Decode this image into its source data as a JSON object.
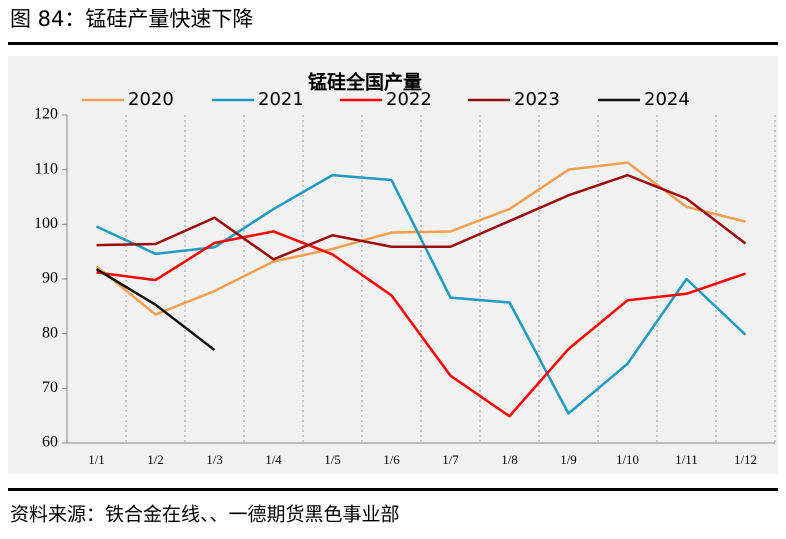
{
  "header": {
    "title": "图 84：锰硅产量快速下降"
  },
  "chart_data": {
    "type": "line",
    "title": "锰硅全国产量",
    "categories": [
      "1/1",
      "1/2",
      "1/3",
      "1/4",
      "1/5",
      "1/6",
      "1/7",
      "1/8",
      "1/9",
      "1/10",
      "1/11",
      "1/12"
    ],
    "series": [
      {
        "name": "2020",
        "color": "#f0a050",
        "values": [
          92.3,
          83.5,
          87.8,
          93.2,
          95.5,
          98.5,
          98.7,
          102.8,
          110,
          111.3,
          103.2,
          100.5
        ]
      },
      {
        "name": "2021",
        "color": "#1f9bc2",
        "values": [
          99.6,
          94.6,
          95.8,
          102.8,
          109,
          108.1,
          86.6,
          85.7,
          65.4,
          74.5,
          90,
          79.8
        ]
      },
      {
        "name": "2022",
        "color": "#ff0000",
        "values": [
          91.2,
          89.8,
          96.6,
          98.7,
          94.5,
          87,
          72.3,
          64.9,
          77.2,
          86.1,
          87.3,
          91
        ]
      },
      {
        "name": "2023",
        "color": "#9b0a0a",
        "values": [
          96.2,
          96.4,
          101.2,
          93.6,
          98,
          95.9,
          95.9,
          100.6,
          105.3,
          109,
          104.7,
          96.5
        ]
      },
      {
        "name": "2024",
        "color": "#111111",
        "values": [
          91.8,
          85.3,
          77,
          null,
          null,
          null,
          null,
          null,
          null,
          null,
          null,
          null
        ]
      }
    ],
    "ylim": [
      60,
      120
    ],
    "yticks": [
      60,
      70,
      80,
      90,
      100,
      110,
      120
    ],
    "grid": true,
    "legend": "top"
  },
  "footer": {
    "source": "资料来源：铁合金在线、、一德期货黑色事业部"
  }
}
